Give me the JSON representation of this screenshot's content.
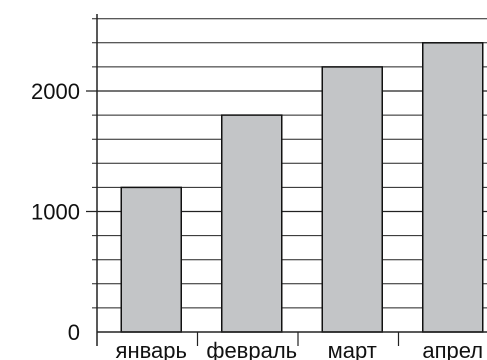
{
  "chart_data": {
    "type": "bar",
    "categories": [
      "январь",
      "февраль",
      "март",
      "апрел"
    ],
    "values": [
      1200,
      1800,
      2200,
      2400
    ],
    "ylim": [
      0,
      2400
    ],
    "y_ticks": [
      "0",
      "1000",
      "2000"
    ],
    "title": "",
    "xlabel": "",
    "ylabel": "",
    "grid": true,
    "colors": {
      "bar_fill": "#c3c5c7",
      "bar_stroke": "#111111",
      "grid": "#222222"
    }
  }
}
